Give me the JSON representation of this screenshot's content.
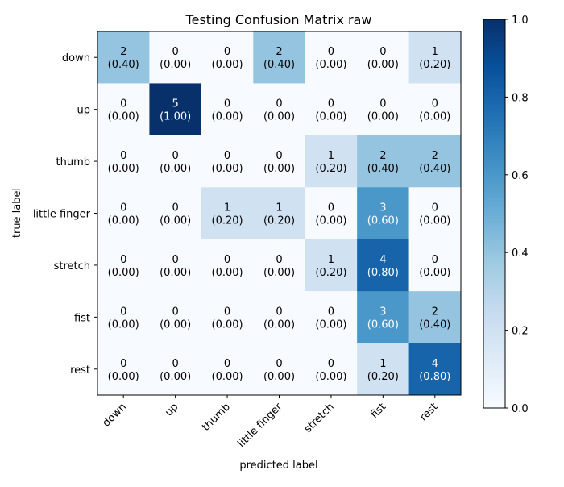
{
  "chart_data": {
    "type": "heatmap",
    "title": "Testing Confusion Matrix raw",
    "xlabel": "predicted label",
    "ylabel": "true label",
    "x_categories": [
      "down",
      "up",
      "thumb",
      "little finger",
      "stretch",
      "fist",
      "rest"
    ],
    "y_categories": [
      "down",
      "up",
      "thumb",
      "little finger",
      "stretch",
      "fist",
      "rest"
    ],
    "counts": [
      [
        2,
        0,
        0,
        2,
        0,
        0,
        1
      ],
      [
        0,
        5,
        0,
        0,
        0,
        0,
        0
      ],
      [
        0,
        0,
        0,
        0,
        1,
        2,
        2
      ],
      [
        0,
        0,
        1,
        1,
        0,
        3,
        0
      ],
      [
        0,
        0,
        0,
        0,
        1,
        4,
        0
      ],
      [
        0,
        0,
        0,
        0,
        0,
        3,
        2
      ],
      [
        0,
        0,
        0,
        0,
        0,
        1,
        4
      ]
    ],
    "normalized": [
      [
        "0.40",
        "0.00",
        "0.00",
        "0.40",
        "0.00",
        "0.00",
        "0.20"
      ],
      [
        "0.00",
        "1.00",
        "0.00",
        "0.00",
        "0.00",
        "0.00",
        "0.00"
      ],
      [
        "0.00",
        "0.00",
        "0.00",
        "0.00",
        "0.20",
        "0.40",
        "0.40"
      ],
      [
        "0.00",
        "0.00",
        "0.20",
        "0.20",
        "0.00",
        "0.60",
        "0.00"
      ],
      [
        "0.00",
        "0.00",
        "0.00",
        "0.00",
        "0.20",
        "0.80",
        "0.00"
      ],
      [
        "0.00",
        "0.00",
        "0.00",
        "0.00",
        "0.00",
        "0.60",
        "0.40"
      ],
      [
        "0.00",
        "0.00",
        "0.00",
        "0.00",
        "0.00",
        "0.20",
        "0.80"
      ]
    ],
    "colormap": "Blues",
    "colorbar": {
      "range": [
        0,
        1
      ],
      "ticks": [
        "0.0",
        "0.2",
        "0.4",
        "0.6",
        "0.8",
        "1.0"
      ]
    },
    "text_colors": {
      "dark_cell": "#ffffff",
      "light_cell": "#000000"
    },
    "grid": false
  }
}
